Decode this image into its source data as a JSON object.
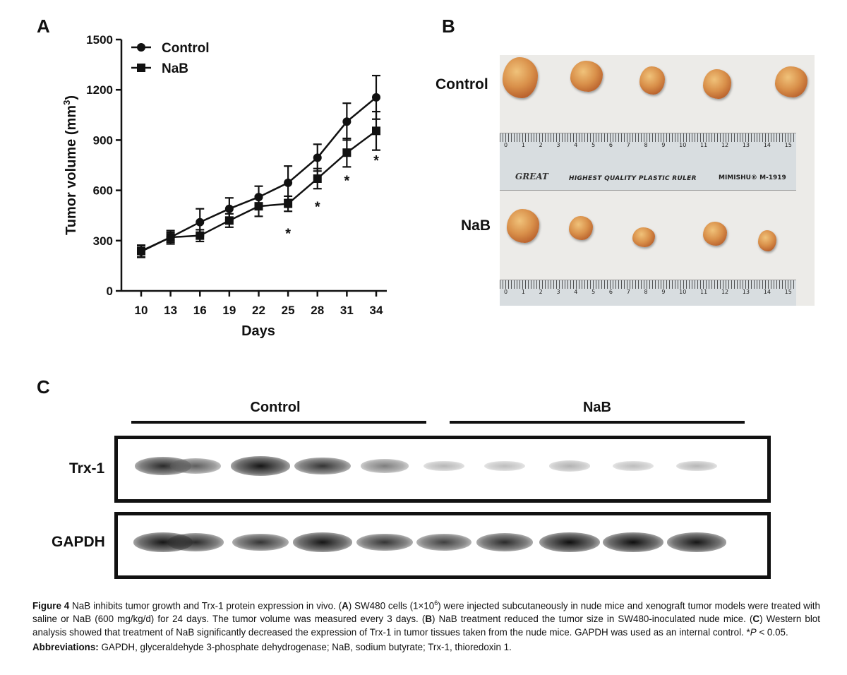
{
  "panels": {
    "a": "A",
    "b": "B",
    "c": "C"
  },
  "chart_data": {
    "type": "line",
    "title": "",
    "xlabel": "Days",
    "ylabel": "Tumor volume (mm",
    "ylabel_sup": "3",
    "ylabel_close": ")",
    "x": [
      10,
      13,
      16,
      19,
      22,
      25,
      28,
      31,
      34
    ],
    "ylim": [
      0,
      1500
    ],
    "yticks": [
      0,
      300,
      600,
      900,
      1200,
      1500
    ],
    "series": [
      {
        "name": "Control",
        "marker": "circle",
        "values": [
          235,
          320,
          410,
          490,
          560,
          645,
          795,
          1010,
          1155
        ],
        "errors": [
          35,
          30,
          80,
          65,
          65,
          100,
          80,
          110,
          130
        ]
      },
      {
        "name": "NaB",
        "marker": "square",
        "values": [
          238,
          320,
          330,
          420,
          505,
          520,
          670,
          825,
          955
        ],
        "errors": [
          35,
          40,
          35,
          40,
          60,
          45,
          60,
          85,
          115
        ]
      }
    ],
    "significance": [
      {
        "x": 25,
        "y": 365,
        "label": "*"
      },
      {
        "x": 28,
        "y": 525,
        "label": "*"
      },
      {
        "x": 31,
        "y": 680,
        "label": "*"
      },
      {
        "x": 34,
        "y": 800,
        "label": "*"
      }
    ],
    "legend": "top-left"
  },
  "photo": {
    "control_label": "Control",
    "nab_label": "NaB",
    "ruler_numbers": [
      "0",
      "1",
      "2",
      "3",
      "4",
      "5",
      "6",
      "7",
      "8",
      "9",
      "10",
      "11",
      "12",
      "13",
      "14",
      "15"
    ],
    "ruler_brand": "GREAT",
    "ruler_text": "HIGHEST QUALITY PLASTIC RULER",
    "ruler_model": "MIMISHU® M-1919"
  },
  "western": {
    "control_label": "Control",
    "nab_label": "NaB",
    "rows": [
      {
        "label": "Trx-1",
        "band_intensity": [
          0.85,
          0.6,
          0.95,
          0.8,
          0.45,
          0.18,
          0.15,
          0.2,
          0.15,
          0.18
        ]
      },
      {
        "label": "GAPDH",
        "band_intensity": [
          0.95,
          0.85,
          0.8,
          0.95,
          0.8,
          0.75,
          0.85,
          0.98,
          0.98,
          0.95
        ]
      }
    ]
  },
  "caption": {
    "fig_label": "Figure 4",
    "text_1": " NaB inhibits tumor growth and Trx-1 protein expression in vivo. (",
    "a": "A",
    "text_2": ") SW480 cells (1×10",
    "sup": "6",
    "text_3": ") were injected subcutaneously in nude mice and xenograft tumor models were treated with saline or NaB (600 mg/kg/d) for 24 days. The tumor volume was measured every 3 days. (",
    "b": "B",
    "text_4": ") NaB treatment reduced the tumor size in SW480-inoculated nude mice. (",
    "c": "C",
    "text_5": ") Western blot analysis showed that treatment of NaB significantly decreased the expression of Trx-1 in tumor tissues taken from the nude mice. GAPDH was used as an internal control. *",
    "p_italic": "P",
    "text_6": " < 0.05.",
    "abbrev_label": "Abbreviations:",
    "abbrev_text": " GAPDH, glyceraldehyde 3-phosphate dehydrogenase; NaB, sodium butyrate; Trx-1, thioredoxin 1."
  }
}
